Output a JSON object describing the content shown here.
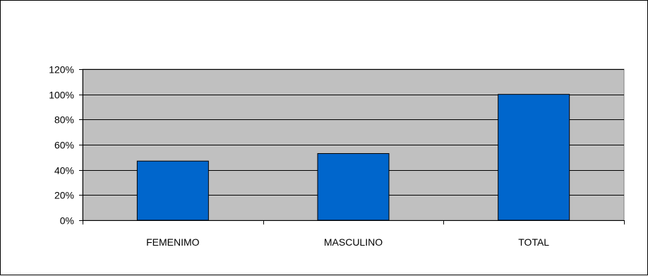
{
  "chart_data": {
    "type": "bar",
    "title": "",
    "xlabel": "",
    "ylabel": "",
    "categories": [
      "FEMENIMO",
      "MASCULINO",
      "TOTAL"
    ],
    "values": [
      47,
      53,
      100
    ],
    "yticks": [
      "0%",
      "20%",
      "40%",
      "60%",
      "80%",
      "100%",
      "120%"
    ],
    "ylim": [
      0,
      120
    ],
    "grid": true,
    "legend": "none",
    "colors": {
      "bar": "#0066cc",
      "plot_background": "#c0c0c0",
      "gridline": "#000000"
    }
  }
}
